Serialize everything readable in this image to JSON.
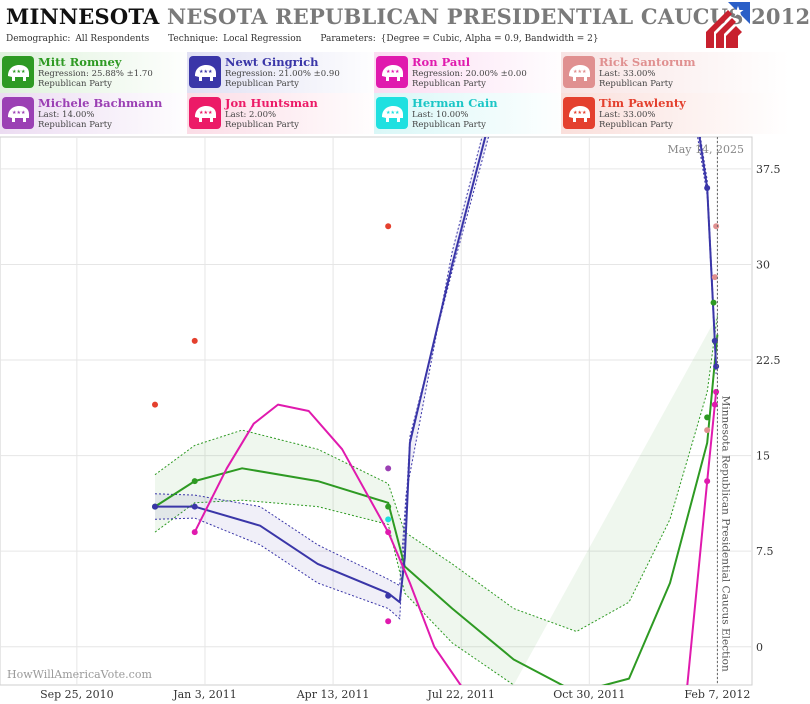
{
  "header": {
    "title_main": "MINNESOTA",
    "title_repeat": "NESOTA REPUBLICAN PRESIDENTIAL CAUCUS 2012",
    "demographic_label": "Demographic:",
    "demographic_value": "All Respondents",
    "technique_label": "Technique:",
    "technique_value": "Local Regression",
    "parameters_label": "Parameters:",
    "parameters_value": "{Degree = Cubic, Alpha = 0.9, Bandwidth = 2}"
  },
  "candidates": [
    {
      "name": "Mitt Romney",
      "stat": "Regression: 25.88% ±1.70",
      "party": "Republican Party",
      "color": "#2e9a23"
    },
    {
      "name": "Newt Gingrich",
      "stat": "Regression: 21.00% ±0.90",
      "party": "Republican Party",
      "color": "#3a36a8"
    },
    {
      "name": "Ron Paul",
      "stat": "Regression: 20.00% ±0.00",
      "party": "Republican Party",
      "color": "#e01aae"
    },
    {
      "name": "Rick Santorum",
      "stat": "Last: 33.00%",
      "party": "Republican Party",
      "color": "#e09090"
    },
    {
      "name": "Michele Bachmann",
      "stat": "Last: 14.00%",
      "party": "Republican Party",
      "color": "#9b40b4"
    },
    {
      "name": "Jon Huntsman",
      "stat": "Last: 2.00%",
      "party": "Republican Party",
      "color": "#ec1a67"
    },
    {
      "name": "Herman Cain",
      "stat": "Last: 10.00%",
      "party": "Republican Party",
      "color": "#1fe0e0"
    },
    {
      "name": "Tim Pawlenty",
      "stat": "Last: 33.00%",
      "party": "Republican Party",
      "color": "#e4402e"
    }
  ],
  "chart_data": {
    "type": "line",
    "x_type": "date",
    "xlim": [
      "2010-07-27",
      "2012-03-05"
    ],
    "ylim": [
      -3,
      40
    ],
    "x_ticks": [
      {
        "date": "2010-09-25",
        "label": "Sep 25, 2010"
      },
      {
        "date": "2011-01-03",
        "label": "Jan 3, 2011"
      },
      {
        "date": "2011-04-13",
        "label": "Apr 13, 2011"
      },
      {
        "date": "2011-07-22",
        "label": "Jul 22, 2011"
      },
      {
        "date": "2011-10-30",
        "label": "Oct 30, 2011"
      },
      {
        "date": "2012-02-07",
        "label": "Feb 7, 2012"
      }
    ],
    "y_ticks": [
      0,
      7.5,
      15,
      22.5,
      30,
      37.5
    ],
    "grid": true,
    "date_label": "May 14, 2025",
    "event": {
      "date": "2012-02-07",
      "label": "Minnesota Republican Presidential Caucus Election"
    },
    "watermark": "HowWillAmericaVote.com",
    "series": [
      {
        "name": "Mitt Romney",
        "color": "#2e9a23",
        "points": [
          [
            "2010-11-25",
            11
          ],
          [
            "2010-12-26",
            13
          ],
          [
            "2011-05-26",
            11
          ],
          [
            "2012-01-30",
            18
          ],
          [
            "2012-02-04",
            27
          ],
          [
            "2012-02-05",
            24
          ]
        ],
        "trend": [
          [
            "2010-11-25",
            11
          ],
          [
            "2010-12-26",
            13
          ],
          [
            "2011-02-01",
            14
          ],
          [
            "2011-04-01",
            13
          ],
          [
            "2011-05-26",
            11.3
          ],
          [
            "2011-06-08",
            6.3
          ],
          [
            "2011-07-15",
            3
          ],
          [
            "2011-09-01",
            -1
          ],
          [
            "2011-10-20",
            -3.6
          ],
          [
            "2011-11-30",
            -2.5
          ],
          [
            "2012-01-01",
            5
          ],
          [
            "2012-01-30",
            16
          ],
          [
            "2012-02-07",
            24.5
          ]
        ],
        "upper": [
          [
            "2010-11-25",
            13.5
          ],
          [
            "2010-12-26",
            15.8
          ],
          [
            "2011-02-01",
            17
          ],
          [
            "2011-04-01",
            15.5
          ],
          [
            "2011-05-26",
            12.8
          ],
          [
            "2011-06-08",
            9
          ],
          [
            "2011-07-15",
            6.5
          ],
          [
            "2011-09-01",
            3
          ],
          [
            "2011-10-20",
            1.2
          ],
          [
            "2011-11-30",
            3.5
          ],
          [
            "2012-01-01",
            10
          ],
          [
            "2012-01-30",
            20
          ],
          [
            "2012-02-07",
            26
          ]
        ],
        "lower": [
          [
            "2010-11-25",
            9
          ],
          [
            "2010-12-26",
            11.3
          ],
          [
            "2011-02-01",
            11.5
          ],
          [
            "2011-04-01",
            11
          ],
          [
            "2011-05-26",
            9.6
          ],
          [
            "2011-06-08",
            4.2
          ],
          [
            "2011-07-15",
            0.3
          ],
          [
            "2011-09-01",
            -3
          ]
        ]
      },
      {
        "name": "Newt Gingrich",
        "color": "#3a36a8",
        "points": [
          [
            "2010-11-25",
            11
          ],
          [
            "2010-12-26",
            11
          ],
          [
            "2011-05-26",
            4
          ],
          [
            "2012-01-30",
            36
          ],
          [
            "2012-02-05",
            24
          ],
          [
            "2012-02-06",
            22
          ]
        ],
        "trend": [
          [
            "2010-11-25",
            11
          ],
          [
            "2010-12-26",
            11
          ],
          [
            "2011-02-15",
            9.5
          ],
          [
            "2011-04-01",
            6.5
          ],
          [
            "2011-05-26",
            4.2
          ],
          [
            "2011-06-04",
            3.5
          ],
          [
            "2011-06-08",
            7
          ],
          [
            "2011-06-12",
            16
          ],
          [
            "2011-07-15",
            30
          ],
          [
            "2011-08-15",
            42
          ],
          [
            "2012-01-18",
            44
          ],
          [
            "2012-01-30",
            36
          ],
          [
            "2012-02-06",
            22
          ]
        ],
        "upper": [
          [
            "2010-11-25",
            12
          ],
          [
            "2010-12-26",
            11.9
          ],
          [
            "2011-02-15",
            11
          ],
          [
            "2011-04-01",
            8
          ],
          [
            "2011-05-26",
            5.3
          ],
          [
            "2011-06-04",
            4.8
          ],
          [
            "2011-06-09",
            12
          ],
          [
            "2011-07-15",
            31
          ],
          [
            "2011-08-15",
            43
          ],
          [
            "2012-01-20",
            43
          ],
          [
            "2012-01-30",
            36.6
          ],
          [
            "2012-02-06",
            22.6
          ]
        ],
        "lower": [
          [
            "2010-11-25",
            10
          ],
          [
            "2010-12-26",
            10.1
          ],
          [
            "2011-02-15",
            8
          ],
          [
            "2011-04-01",
            5
          ],
          [
            "2011-05-26",
            3
          ],
          [
            "2011-06-04",
            2.2
          ],
          [
            "2011-06-12",
            16.5
          ],
          [
            "2011-07-15",
            29.5
          ],
          [
            "2011-08-15",
            41
          ],
          [
            "2012-01-16",
            44
          ],
          [
            "2012-01-30",
            35.4
          ],
          [
            "2012-02-06",
            21.4
          ]
        ]
      },
      {
        "name": "Ron Paul",
        "color": "#e01aae",
        "points": [
          [
            "2010-12-26",
            9
          ],
          [
            "2011-05-26",
            9
          ],
          [
            "2011-05-26",
            2
          ],
          [
            "2012-01-30",
            13
          ],
          [
            "2012-02-05",
            19
          ],
          [
            "2012-02-06",
            20
          ]
        ],
        "trend": [
          [
            "2010-12-26",
            9
          ],
          [
            "2011-01-20",
            14
          ],
          [
            "2011-02-10",
            17.5
          ],
          [
            "2011-03-01",
            19
          ],
          [
            "2011-03-25",
            18.5
          ],
          [
            "2011-04-20",
            15.5
          ],
          [
            "2011-05-26",
            9
          ],
          [
            "2011-06-12",
            5
          ],
          [
            "2011-07-01",
            0
          ],
          [
            "2011-07-25",
            -3.5
          ],
          [
            "2012-01-14",
            -3.5
          ],
          [
            "2012-01-30",
            13
          ],
          [
            "2012-02-06",
            20
          ]
        ]
      },
      {
        "name": "Rick Santorum",
        "color": "#e09090",
        "points": [
          [
            "2012-01-30",
            17
          ],
          [
            "2012-02-05",
            29
          ],
          [
            "2012-02-06",
            33
          ]
        ]
      },
      {
        "name": "Michele Bachmann",
        "color": "#9b40b4",
        "points": [
          [
            "2011-05-26",
            14
          ]
        ]
      },
      {
        "name": "Herman Cain",
        "color": "#1fe0e0",
        "points": [
          [
            "2011-05-26",
            10
          ]
        ]
      },
      {
        "name": "Tim Pawlenty",
        "color": "#e4402e",
        "points": [
          [
            "2010-11-25",
            19
          ],
          [
            "2010-12-26",
            24
          ],
          [
            "2011-05-26",
            33
          ]
        ]
      }
    ]
  }
}
